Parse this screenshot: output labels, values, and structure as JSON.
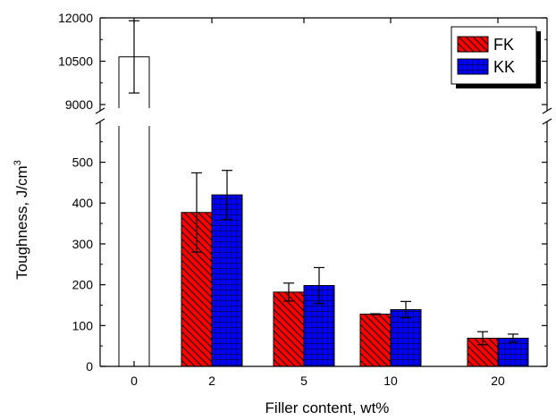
{
  "chart_data": {
    "type": "bar",
    "xlabel": "Filler content, wt%",
    "ylabel": "Toughness, J/cm",
    "ylabel_superscript": "3",
    "axis_break": true,
    "lower_ylim": [
      0,
      580
    ],
    "upper_ylim": [
      9000,
      12000
    ],
    "lower_yticks": [
      "0",
      "100",
      "200",
      "300",
      "400",
      "500"
    ],
    "upper_yticks": [
      "9000",
      "10500",
      "12000"
    ],
    "categories": [
      "0",
      "2",
      "5",
      "10",
      "20"
    ],
    "baseline": {
      "category": "0",
      "value": 10650,
      "error": 1250,
      "color": "#ffffff"
    },
    "series": [
      {
        "name": "FK",
        "color": "#ff0000",
        "pattern": "diagonal-hatch",
        "values": [
          null,
          377,
          182,
          128,
          69
        ],
        "errors": [
          null,
          97,
          22,
          1,
          16
        ]
      },
      {
        "name": "KK",
        "color": "#0000ff",
        "pattern": "grid-hatch",
        "values": [
          null,
          420,
          198,
          139,
          69
        ],
        "errors": [
          null,
          60,
          44,
          20,
          10
        ]
      }
    ],
    "legend_position": "top-right",
    "grid": false
  }
}
